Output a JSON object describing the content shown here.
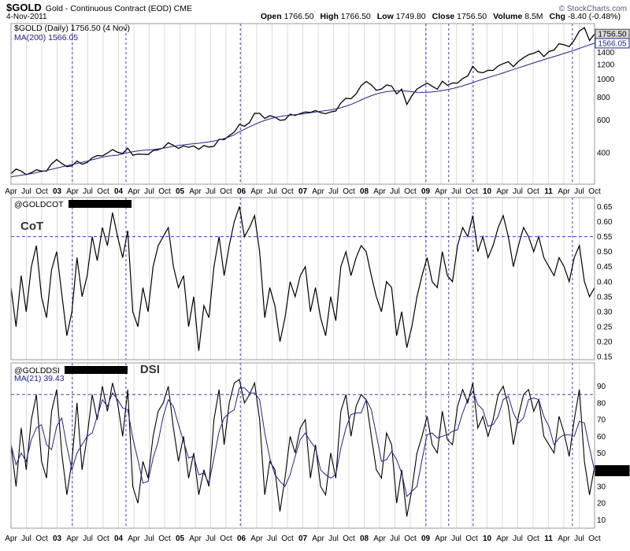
{
  "header": {
    "symbol": "$GOLD",
    "description": "Gold - Continuous Contract (EOD) CME",
    "copyright": "© StockCharts.com",
    "date": "4-Nov-2011",
    "quote": [
      {
        "label": "Open",
        "value": "1766.50"
      },
      {
        "label": "High",
        "value": "1766.50"
      },
      {
        "label": "Low",
        "value": "1749.80"
      },
      {
        "label": "Close",
        "value": "1756.50"
      },
      {
        "label": "Volume",
        "value": "8.5M"
      },
      {
        "label": "Chg",
        "value": "-8.40 (-0.48%)"
      }
    ]
  },
  "chart_layout": {
    "x_ticks": [
      "Apr",
      "Jul",
      "Oct",
      "03",
      "Apr",
      "Jul",
      "Oct",
      "04",
      "Apr",
      "Jul",
      "Oct",
      "05",
      "Apr",
      "Jul",
      "Oct",
      "06",
      "Apr",
      "Jul",
      "Oct",
      "07",
      "Apr",
      "Jul",
      "Oct",
      "08",
      "Apr",
      "Jul",
      "Oct",
      "09",
      "Apr",
      "Jul",
      "Oct",
      "10",
      "Apr",
      "Jul",
      "Oct",
      "11",
      "Apr",
      "Jul",
      "Oct"
    ],
    "x_range": "Apr 2002 - Nov 2011, monthly samples",
    "vlines_pct": [
      10.5,
      19.7,
      39.3,
      71.1,
      75.0,
      79.2,
      96.2
    ],
    "grid_color": "#dcdcdc",
    "dash_color": "#3d3dc0",
    "frame_color": "#999999",
    "legend_position": "top-left",
    "grid": "vertical-quarterly"
  },
  "chart_data": [
    {
      "name": "price",
      "type": "line",
      "scale": "log",
      "legend1": "$GOLD (Daily) 1756.50 (4 Nov)",
      "legend2": "MA(200) 1566.05",
      "ylim": [
        270,
        2000
      ],
      "yticks": [
        "1400",
        "1200",
        "1000",
        "800",
        "600",
        "400"
      ],
      "price_labels": [
        {
          "text": "1756.50",
          "value": 1756.5,
          "bg": "#d9d9d9",
          "border": "#444444",
          "color": "#000000"
        },
        {
          "text": "1566.05",
          "value": 1566.05,
          "bg": "#ffffff",
          "border": "#22228c",
          "color": "#22228c"
        }
      ],
      "series": [
        {
          "name": "$GOLD close",
          "color": "#000000",
          "width": 1.3,
          "values": [
            308,
            326,
            318,
            304,
            312,
            323,
            318,
            318,
            348,
            367,
            350,
            336,
            339,
            361,
            346,
            354,
            375,
            386,
            384,
            398,
            416,
            402,
            396,
            423,
            388,
            393,
            392,
            391,
            410,
            415,
            425,
            453,
            438,
            422,
            435,
            428,
            435,
            417,
            437,
            429,
            433,
            473,
            470,
            495,
            517,
            569,
            556,
            582,
            654,
            653,
            613,
            634,
            623,
            599,
            603,
            646,
            636,
            651,
            664,
            661,
            677,
            659,
            650,
            665,
            673,
            743,
            789,
            783,
            833,
            923,
            971,
            933,
            871,
            885,
            930,
            918,
            833,
            884,
            730,
            814,
            884,
            919,
            952,
            916,
            883,
            975,
            927,
            953,
            953,
            1008,
            1040,
            1175,
            1096,
            1083,
            1118,
            1115,
            1180,
            1215,
            1244,
            1169,
            1248,
            1307,
            1357,
            1383,
            1421,
            1327,
            1411,
            1439,
            1556,
            1536,
            1502,
            1628,
            1826,
            1900,
            1620,
            1756.5
          ]
        },
        {
          "name": "MA(200)",
          "color": "#22228c",
          "width": 1,
          "values": [
            296,
            299,
            302,
            305,
            308,
            312,
            316,
            320,
            325,
            330,
            335,
            340,
            345,
            350,
            355,
            360,
            366,
            372,
            378,
            383,
            386,
            388,
            394,
            400,
            405,
            409,
            412,
            414,
            416,
            419,
            423,
            428,
            433,
            438,
            441,
            444,
            447,
            450,
            454,
            458,
            463,
            469,
            477,
            487,
            500,
            520,
            535,
            552,
            568,
            584,
            598,
            610,
            620,
            628,
            634,
            638,
            642,
            646,
            652,
            658,
            664,
            670,
            676,
            682,
            690,
            700,
            714,
            730,
            750,
            772,
            794,
            814,
            832,
            846,
            856,
            862,
            866,
            866,
            862,
            856,
            850,
            848,
            850,
            854,
            860,
            868,
            878,
            890,
            904,
            920,
            938,
            958,
            980,
            1000,
            1020,
            1040,
            1060,
            1082,
            1105,
            1128,
            1152,
            1176,
            1200,
            1225,
            1250,
            1275,
            1300,
            1325,
            1350,
            1378,
            1406,
            1434,
            1468,
            1502,
            1535,
            1566.05
          ]
        }
      ]
    },
    {
      "name": "cot",
      "type": "line",
      "scale": "linear",
      "legend1": "@GOLDCOT",
      "value_redacted": true,
      "panel_label": "CoT",
      "ylim": [
        0.14,
        0.68
      ],
      "yticks": [
        "0.65",
        "0.60",
        "0.55",
        "0.50",
        "0.45",
        "0.40",
        "0.35",
        "0.30",
        "0.25",
        "0.20",
        "0.15"
      ],
      "signal_level": 0.55,
      "series": [
        {
          "name": "@GOLDCOT",
          "color": "#000000",
          "width": 1.2,
          "values": [
            0.38,
            0.25,
            0.42,
            0.3,
            0.45,
            0.52,
            0.35,
            0.28,
            0.44,
            0.5,
            0.36,
            0.22,
            0.3,
            0.48,
            0.35,
            0.42,
            0.55,
            0.47,
            0.58,
            0.52,
            0.63,
            0.55,
            0.48,
            0.57,
            0.3,
            0.25,
            0.38,
            0.3,
            0.45,
            0.52,
            0.55,
            0.58,
            0.45,
            0.38,
            0.42,
            0.25,
            0.35,
            0.17,
            0.32,
            0.28,
            0.45,
            0.55,
            0.42,
            0.52,
            0.6,
            0.65,
            0.55,
            0.58,
            0.62,
            0.5,
            0.28,
            0.38,
            0.32,
            0.2,
            0.28,
            0.4,
            0.35,
            0.42,
            0.45,
            0.3,
            0.38,
            0.28,
            0.22,
            0.35,
            0.27,
            0.45,
            0.5,
            0.42,
            0.48,
            0.52,
            0.5,
            0.42,
            0.35,
            0.3,
            0.4,
            0.38,
            0.22,
            0.3,
            0.18,
            0.25,
            0.35,
            0.42,
            0.48,
            0.4,
            0.38,
            0.5,
            0.42,
            0.4,
            0.52,
            0.58,
            0.55,
            0.62,
            0.5,
            0.55,
            0.48,
            0.52,
            0.58,
            0.62,
            0.55,
            0.45,
            0.52,
            0.58,
            0.55,
            0.5,
            0.55,
            0.48,
            0.45,
            0.42,
            0.48,
            0.45,
            0.4,
            0.48,
            0.52,
            0.4,
            0.35,
            0.38
          ]
        }
      ]
    },
    {
      "name": "dsi",
      "type": "line",
      "scale": "linear",
      "legend1": "@GOLDDSI",
      "value_redacted": true,
      "panel_label": "DSI",
      "legend2": "MA(21) 39.43",
      "ylim": [
        5,
        104
      ],
      "yticks": [
        "90",
        "80",
        "70",
        "60",
        "50",
        "40",
        "30",
        "20",
        "10"
      ],
      "signal_level": 85,
      "axis_redact_value": 39.43,
      "series": [
        {
          "name": "@GOLDDSI",
          "color": "#000000",
          "width": 1.1,
          "values": [
            55,
            30,
            65,
            40,
            70,
            85,
            45,
            35,
            75,
            88,
            50,
            25,
            45,
            80,
            40,
            60,
            85,
            70,
            90,
            75,
            92,
            80,
            60,
            88,
            30,
            20,
            45,
            35,
            60,
            75,
            80,
            90,
            65,
            45,
            60,
            35,
            50,
            25,
            40,
            30,
            70,
            88,
            55,
            80,
            92,
            94,
            80,
            85,
            92,
            70,
            25,
            45,
            40,
            15,
            35,
            60,
            50,
            65,
            70,
            35,
            55,
            30,
            25,
            50,
            35,
            75,
            85,
            60,
            78,
            85,
            82,
            60,
            40,
            35,
            62,
            55,
            20,
            40,
            12,
            28,
            50,
            60,
            72,
            55,
            50,
            75,
            58,
            55,
            78,
            88,
            80,
            92,
            65,
            72,
            60,
            70,
            85,
            90,
            78,
            55,
            72,
            85,
            88,
            75,
            82,
            60,
            55,
            50,
            72,
            62,
            48,
            70,
            88,
            45,
            25,
            42
          ]
        },
        {
          "name": "MA(21)",
          "color": "#22228c",
          "width": 1,
          "values": [
            55,
            43,
            50,
            45,
            58,
            65,
            67,
            55,
            52,
            66,
            71,
            54,
            40,
            50,
            55,
            60,
            62,
            72,
            82,
            78,
            86,
            82,
            77,
            76,
            59,
            46,
            32,
            33,
            47,
            57,
            72,
            82,
            78,
            67,
            57,
            47,
            48,
            37,
            38,
            32,
            47,
            63,
            71,
            74,
            76,
            89,
            89,
            86,
            86,
            82,
            62,
            47,
            37,
            33,
            30,
            37,
            48,
            58,
            62,
            57,
            53,
            40,
            37,
            35,
            37,
            53,
            65,
            73,
            74,
            74,
            82,
            76,
            61,
            45,
            46,
            51,
            46,
            38,
            24,
            27,
            30,
            46,
            61,
            62,
            59,
            60,
            61,
            63,
            64,
            74,
            82,
            87,
            79,
            76,
            66,
            67,
            72,
            82,
            84,
            74,
            68,
            71,
            82,
            83,
            82,
            72,
            66,
            55,
            59,
            61,
            61,
            60,
            69,
            68,
            53,
            39.43
          ]
        }
      ]
    }
  ]
}
